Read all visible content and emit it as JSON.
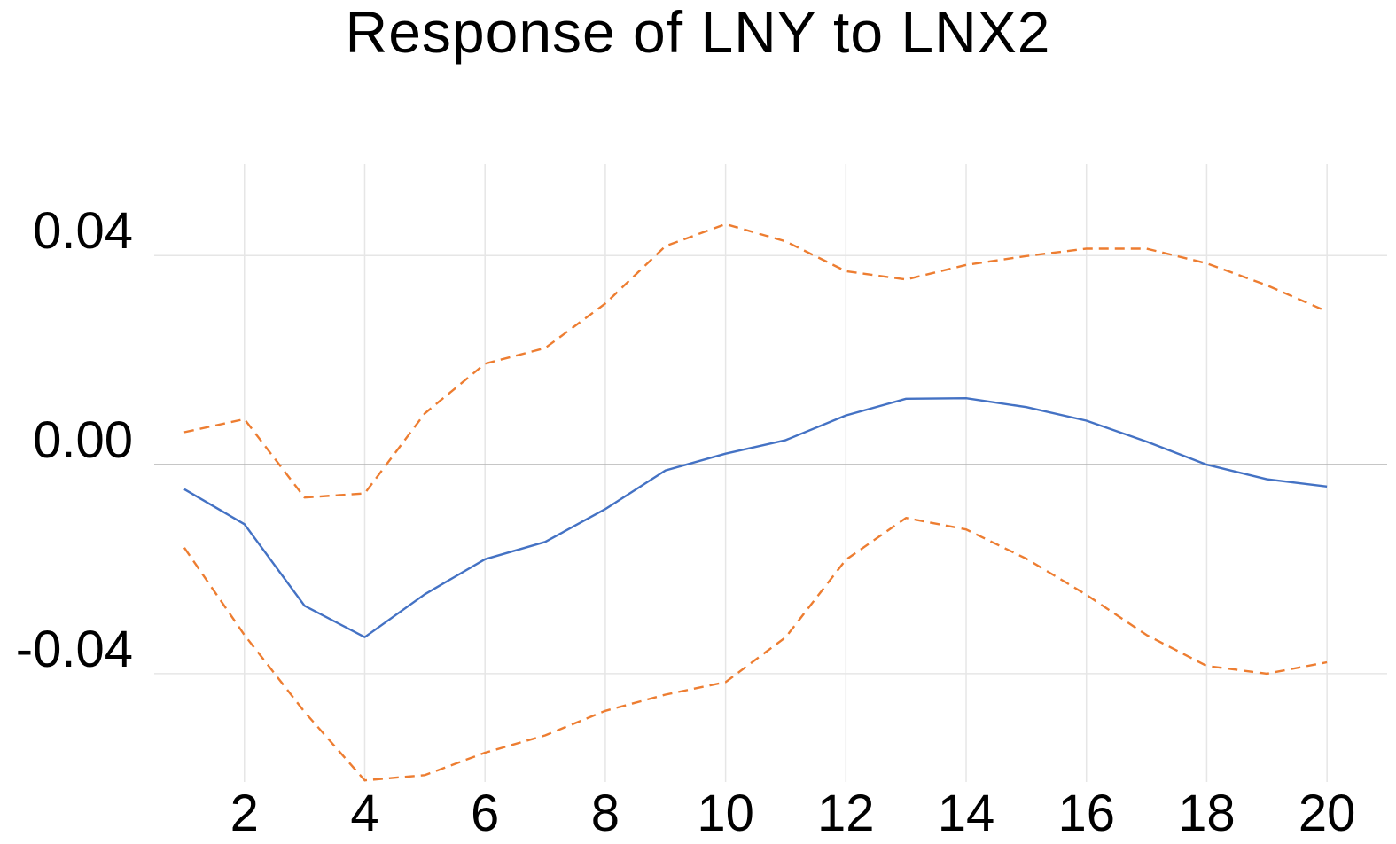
{
  "chart_data": {
    "type": "line",
    "title": "Response of LNY to LNX2",
    "xlabel": "",
    "ylabel": "",
    "x": [
      1,
      2,
      3,
      4,
      5,
      6,
      7,
      8,
      9,
      10,
      11,
      12,
      13,
      14,
      15,
      16,
      17,
      18,
      19,
      20
    ],
    "xlim": [
      0.5,
      21
    ],
    "ylim": [
      -0.0607,
      0.0575
    ],
    "x_ticks": [
      2,
      4,
      6,
      8,
      10,
      12,
      14,
      16,
      18,
      20
    ],
    "x_tick_labels": [
      "2",
      "4",
      "6",
      "8",
      "10",
      "12",
      "14",
      "16",
      "18",
      "20"
    ],
    "y_ticks": [
      0.04,
      0.0,
      -0.04
    ],
    "y_tick_labels": [
      "0.04",
      "0.00",
      "-0.04"
    ],
    "grid": true,
    "series": [
      {
        "role": "response",
        "color": "#4472c4",
        "style": "solid",
        "values": [
          -0.0047,
          -0.0114,
          -0.027,
          -0.033,
          -0.0248,
          -0.0181,
          -0.0148,
          -0.0085,
          -0.0011,
          0.0021,
          0.0047,
          0.0094,
          0.0126,
          0.0127,
          0.011,
          0.0084,
          0.0044,
          0.0,
          -0.0028,
          -0.0042
        ]
      },
      {
        "role": "upper_band",
        "color": "#ed7d31",
        "style": "dashed",
        "values": [
          0.0062,
          0.0087,
          -0.0063,
          -0.0055,
          0.0098,
          0.0193,
          0.0223,
          0.0308,
          0.0418,
          0.046,
          0.0427,
          0.037,
          0.0354,
          0.0382,
          0.0399,
          0.0413,
          0.0413,
          0.0385,
          0.0343,
          0.0293
        ]
      },
      {
        "role": "lower_band",
        "color": "#ed7d31",
        "style": "dashed",
        "values": [
          -0.0159,
          -0.0326,
          -0.0473,
          -0.0604,
          -0.0594,
          -0.0551,
          -0.0518,
          -0.0471,
          -0.044,
          -0.0416,
          -0.033,
          -0.0182,
          -0.0102,
          -0.0124,
          -0.018,
          -0.0249,
          -0.0326,
          -0.0385,
          -0.04,
          -0.0378
        ]
      }
    ]
  }
}
